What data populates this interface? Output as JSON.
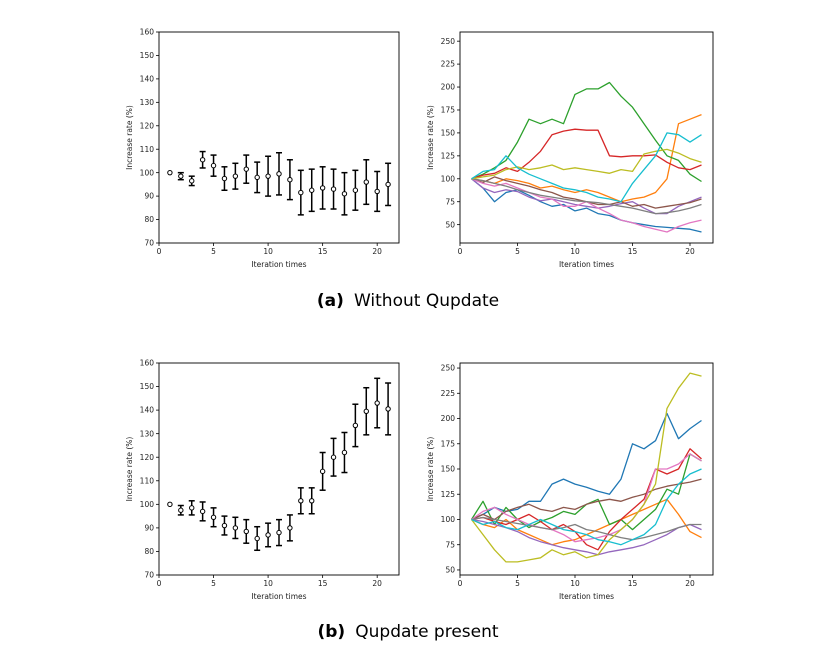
{
  "captions": [
    {
      "label": "(a)",
      "text": "Without Qupdate"
    },
    {
      "label": "(b)",
      "text": "Qupdate present"
    }
  ],
  "chart_data": [
    {
      "id": "a-left",
      "type": "scatter",
      "subtype": "errorbar",
      "xlabel": "Iteration times",
      "ylabel": "Increase rate (%)",
      "xlim": [
        0,
        22
      ],
      "ylim": [
        70,
        160
      ],
      "xticks": [
        0,
        5,
        10,
        15,
        20
      ],
      "yticks": [
        70,
        80,
        90,
        100,
        110,
        120,
        130,
        140,
        150,
        160
      ],
      "x": [
        1,
        2,
        3,
        4,
        5,
        6,
        7,
        8,
        9,
        10,
        11,
        12,
        13,
        14,
        15,
        16,
        17,
        18,
        19,
        20,
        21
      ],
      "y": [
        100,
        98.5,
        96.5,
        105.5,
        103,
        97.5,
        98.5,
        101.5,
        98,
        98.5,
        99.5,
        97,
        91.5,
        92.5,
        93.5,
        93,
        91,
        92.5,
        96,
        92,
        95
      ],
      "err": [
        0,
        1.5,
        2,
        3.5,
        4.5,
        5,
        5.5,
        6,
        6.5,
        8.5,
        9,
        8.5,
        9.5,
        9,
        9,
        8.5,
        9,
        8.5,
        9.5,
        8.5,
        9
      ]
    },
    {
      "id": "a-right",
      "type": "line",
      "xlabel": "Iteration times",
      "ylabel": "Increase rate (%)",
      "xlim": [
        0,
        22
      ],
      "ylim": [
        30,
        260
      ],
      "xticks": [
        0,
        5,
        10,
        15,
        20
      ],
      "yticks": [
        50,
        75,
        100,
        125,
        150,
        175,
        200,
        225,
        250
      ],
      "x": [
        1,
        2,
        3,
        4,
        5,
        6,
        7,
        8,
        9,
        10,
        11,
        12,
        13,
        14,
        15,
        16,
        17,
        18,
        19,
        20,
        21
      ],
      "series": [
        {
          "name": "blue",
          "color": "#1f77b4",
          "values": [
            100,
            90,
            75,
            85,
            88,
            82,
            75,
            70,
            72,
            65,
            68,
            62,
            60,
            55,
            52,
            50,
            48,
            47,
            46,
            45,
            42
          ]
        },
        {
          "name": "orange",
          "color": "#ff7f0e",
          "values": [
            100,
            98,
            95,
            100,
            98,
            95,
            90,
            92,
            88,
            85,
            88,
            85,
            80,
            75,
            78,
            80,
            85,
            100,
            160,
            165,
            170
          ]
        },
        {
          "name": "green",
          "color": "#2ca02c",
          "values": [
            100,
            105,
            112,
            120,
            140,
            165,
            160,
            165,
            160,
            192,
            198,
            198,
            205,
            190,
            178,
            160,
            142,
            125,
            120,
            105,
            97
          ]
        },
        {
          "name": "red",
          "color": "#d62728",
          "values": [
            100,
            104,
            106,
            112,
            108,
            118,
            130,
            148,
            152,
            154,
            153,
            153,
            125,
            124,
            125,
            125,
            126,
            118,
            112,
            110,
            115
          ]
        },
        {
          "name": "purple",
          "color": "#9467bd",
          "values": [
            100,
            90,
            85,
            88,
            86,
            80,
            76,
            78,
            75,
            72,
            70,
            68,
            70,
            73,
            75,
            68,
            62,
            62,
            70,
            75,
            80
          ]
        },
        {
          "name": "brown",
          "color": "#8c564b",
          "values": [
            100,
            96,
            102,
            98,
            95,
            92,
            88,
            85,
            80,
            78,
            75,
            72,
            72,
            75,
            70,
            72,
            68,
            70,
            72,
            74,
            78
          ]
        },
        {
          "name": "pink",
          "color": "#e377c2",
          "values": [
            100,
            95,
            92,
            95,
            90,
            85,
            80,
            78,
            70,
            70,
            75,
            68,
            62,
            55,
            52,
            48,
            45,
            42,
            48,
            52,
            55
          ]
        },
        {
          "name": "gray",
          "color": "#7f7f7f",
          "values": [
            100,
            98,
            95,
            92,
            88,
            85,
            82,
            80,
            78,
            76,
            75,
            74,
            72,
            70,
            68,
            65,
            62,
            63,
            65,
            68,
            72
          ]
        },
        {
          "name": "olive",
          "color": "#bcbd22",
          "values": [
            100,
            102,
            104,
            110,
            113,
            110,
            112,
            115,
            110,
            112,
            110,
            108,
            106,
            110,
            108,
            127,
            130,
            132,
            128,
            122,
            118
          ]
        },
        {
          "name": "cyan",
          "color": "#17becf",
          "values": [
            100,
            108,
            110,
            125,
            112,
            105,
            100,
            95,
            90,
            88,
            85,
            80,
            78,
            75,
            95,
            110,
            125,
            150,
            148,
            140,
            148
          ]
        }
      ]
    },
    {
      "id": "b-left",
      "type": "scatter",
      "subtype": "errorbar",
      "xlabel": "Iteration times",
      "ylabel": "Increase rate (%)",
      "xlim": [
        0,
        22
      ],
      "ylim": [
        70,
        160
      ],
      "xticks": [
        0,
        5,
        10,
        15,
        20
      ],
      "yticks": [
        70,
        80,
        90,
        100,
        110,
        120,
        130,
        140,
        150,
        160
      ],
      "x": [
        1,
        2,
        3,
        4,
        5,
        6,
        7,
        8,
        9,
        10,
        11,
        12,
        13,
        14,
        15,
        16,
        17,
        18,
        19,
        20,
        21
      ],
      "y": [
        100,
        97.5,
        98.5,
        97,
        94.5,
        91,
        90,
        88.5,
        85.5,
        87,
        88,
        90,
        101.5,
        101.5,
        114,
        120,
        122,
        133.5,
        139.5,
        143,
        140.5
      ],
      "err": [
        0,
        2,
        3,
        4,
        4,
        4,
        4.5,
        5,
        5,
        5,
        5.5,
        5.5,
        5.5,
        5.5,
        8,
        8,
        8.5,
        9,
        10,
        10.5,
        11
      ]
    },
    {
      "id": "b-right",
      "type": "line",
      "xlabel": "Iteration times",
      "ylabel": "Increase rate (%)",
      "xlim": [
        0,
        22
      ],
      "ylim": [
        45,
        255
      ],
      "xticks": [
        0,
        5,
        10,
        15,
        20
      ],
      "yticks": [
        50,
        75,
        100,
        125,
        150,
        175,
        200,
        225,
        250
      ],
      "x": [
        1,
        2,
        3,
        4,
        5,
        6,
        7,
        8,
        9,
        10,
        11,
        12,
        13,
        14,
        15,
        16,
        17,
        18,
        19,
        20,
        21
      ],
      "series": [
        {
          "name": "blue",
          "color": "#1f77b4",
          "values": [
            100,
            105,
            112,
            108,
            110,
            118,
            118,
            135,
            140,
            135,
            132,
            128,
            125,
            140,
            175,
            170,
            178,
            205,
            180,
            190,
            198
          ]
        },
        {
          "name": "orange",
          "color": "#ff7f0e",
          "values": [
            100,
            95,
            92,
            100,
            90,
            85,
            80,
            75,
            78,
            80,
            85,
            90,
            95,
            100,
            105,
            110,
            115,
            120,
            105,
            88,
            82
          ]
        },
        {
          "name": "green",
          "color": "#2ca02c",
          "values": [
            100,
            118,
            95,
            112,
            100,
            92,
            98,
            102,
            108,
            105,
            115,
            120,
            95,
            100,
            90,
            100,
            110,
            130,
            125,
            165,
            158
          ]
        },
        {
          "name": "red",
          "color": "#d62728",
          "values": [
            100,
            102,
            98,
            95,
            100,
            105,
            98,
            90,
            95,
            88,
            75,
            70,
            88,
            100,
            110,
            120,
            150,
            145,
            150,
            170,
            160
          ]
        },
        {
          "name": "purple",
          "color": "#9467bd",
          "values": [
            100,
            98,
            95,
            92,
            88,
            82,
            78,
            75,
            72,
            70,
            68,
            65,
            68,
            70,
            72,
            75,
            80,
            85,
            92,
            95,
            90
          ]
        },
        {
          "name": "brown",
          "color": "#8c564b",
          "values": [
            100,
            105,
            100,
            108,
            112,
            115,
            110,
            108,
            112,
            110,
            115,
            118,
            120,
            118,
            122,
            125,
            130,
            133,
            135,
            137,
            140
          ]
        },
        {
          "name": "pink",
          "color": "#e377c2",
          "values": [
            100,
            108,
            112,
            105,
            100,
            95,
            92,
            90,
            85,
            78,
            80,
            82,
            85,
            90,
            100,
            115,
            150,
            150,
            155,
            165,
            158
          ]
        },
        {
          "name": "gray",
          "color": "#7f7f7f",
          "values": [
            100,
            102,
            100,
            98,
            96,
            94,
            92,
            90,
            92,
            95,
            90,
            88,
            85,
            82,
            80,
            82,
            85,
            88,
            92,
            95,
            95
          ]
        },
        {
          "name": "olive",
          "color": "#bcbd22",
          "values": [
            100,
            85,
            70,
            58,
            58,
            60,
            62,
            70,
            65,
            68,
            62,
            65,
            80,
            90,
            100,
            115,
            135,
            210,
            230,
            245,
            242
          ]
        },
        {
          "name": "cyan",
          "color": "#17becf",
          "values": [
            100,
            95,
            98,
            92,
            90,
            95,
            100,
            95,
            90,
            88,
            85,
            80,
            78,
            75,
            80,
            85,
            95,
            120,
            135,
            145,
            150
          ]
        }
      ]
    }
  ]
}
